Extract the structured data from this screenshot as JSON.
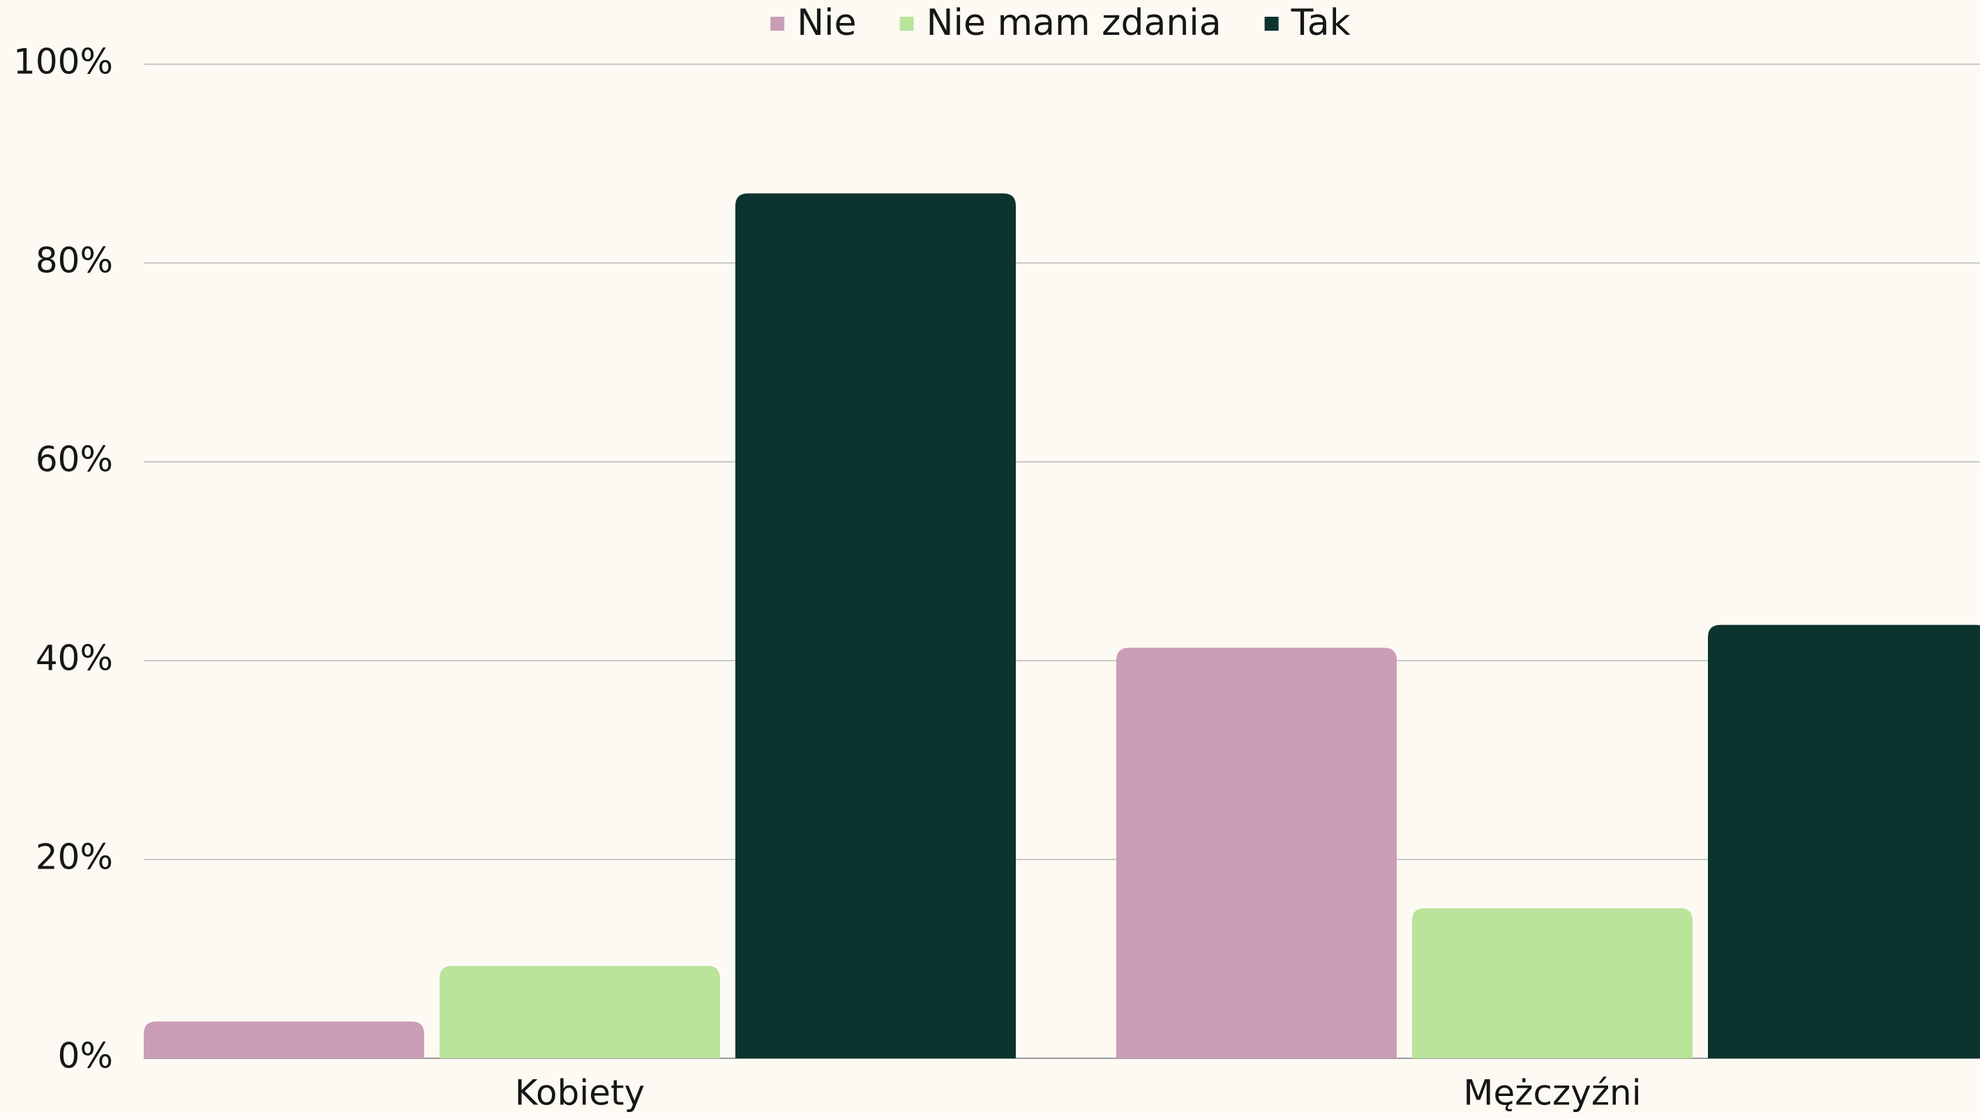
{
  "chart_data": {
    "type": "bar",
    "categories": [
      "Kobiety",
      "Mężczyźni"
    ],
    "series": [
      {
        "name": "Nie",
        "color": "#c99db6",
        "values": [
          3.7,
          41.3
        ]
      },
      {
        "name": "Nie mam zdania",
        "color": "#b9e49a",
        "values": [
          9.3,
          15.1
        ]
      },
      {
        "name": "Tak",
        "color": "#0d332e",
        "values": [
          87.0,
          43.6
        ]
      }
    ],
    "ylim": [
      0,
      100
    ],
    "yticks": [
      {
        "value": 0,
        "label": "0%"
      },
      {
        "value": 20,
        "label": "20%"
      },
      {
        "value": 40,
        "label": "40%"
      },
      {
        "value": 60,
        "label": "60%"
      },
      {
        "value": 80,
        "label": "80%"
      },
      {
        "value": 100,
        "label": "100%"
      }
    ],
    "grid": true,
    "legend": "top"
  }
}
